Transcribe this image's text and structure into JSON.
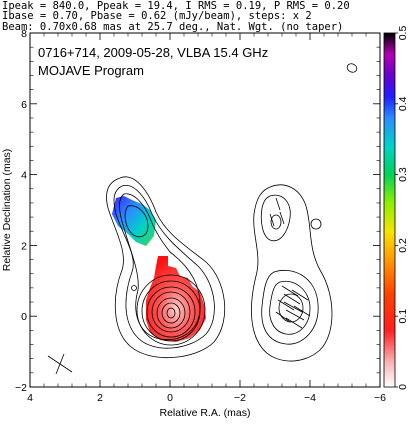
{
  "header": {
    "line1": "Ipeak = 840.0, Ppeak = 19.4, I RMS = 0.19, P RMS = 0.20",
    "line2": "Ibase = 0.70, Pbase = 0.62 (mJy/beam), steps: x 2",
    "line3": "Beam: 0.70x0.68 mas at 25.7 deg., Nat. Wgt. (no taper)"
  },
  "panel_title": {
    "line1": "0716+714, 2009-05-28, VLBA 15.4 GHz",
    "line2": "MOJAVE Program"
  },
  "colors": {
    "frame": "#000000",
    "contour": "#000000"
  },
  "chart_data": {
    "type": "heatmap",
    "xlabel": "Relative R.A. (mas)",
    "ylabel": "Relative Declination (mas)",
    "xlim": [
      4,
      -6
    ],
    "ylim": [
      -2,
      8
    ],
    "xticks": [
      4,
      2,
      0,
      -2,
      -4,
      -6
    ],
    "xtick_labels": [
      "4",
      "2",
      "0",
      "−2",
      "−4",
      "−6"
    ],
    "yticks": [
      -2,
      0,
      2,
      4,
      6,
      8
    ],
    "ytick_labels": [
      "−2",
      "0",
      "2",
      "4",
      "6",
      "8"
    ],
    "colorbar": {
      "ticks": [
        0,
        0.1,
        0.2,
        0.3,
        0.4,
        0.5
      ],
      "tick_labels": [
        "0",
        "0.1",
        "0.2",
        "0.3",
        "0.4",
        "0.5"
      ],
      "range": [
        0,
        0.5
      ]
    },
    "left_panel": {
      "total_intensity_contours": {
        "peak_mJy_per_beam": 840.0,
        "base_mJy_per_beam": 0.7,
        "step_factor": 2,
        "core_position_mas": [
          0,
          0
        ]
      },
      "fractional_polarization_regions": [
        {
          "component": "jet",
          "ra_mas": 1.0,
          "dec_mas": 2.6,
          "fraction_range": [
            0.28,
            0.45
          ]
        },
        {
          "component": "core",
          "ra_mas": 0.0,
          "dec_mas": 0.4,
          "fraction_range": [
            0.0,
            0.12
          ]
        }
      ]
    },
    "right_panel": {
      "polarized_intensity_contours": {
        "peak_mJy_per_beam": 19.4,
        "base_mJy_per_beam": 0.62
      },
      "evpa_vectors": "shown"
    }
  }
}
